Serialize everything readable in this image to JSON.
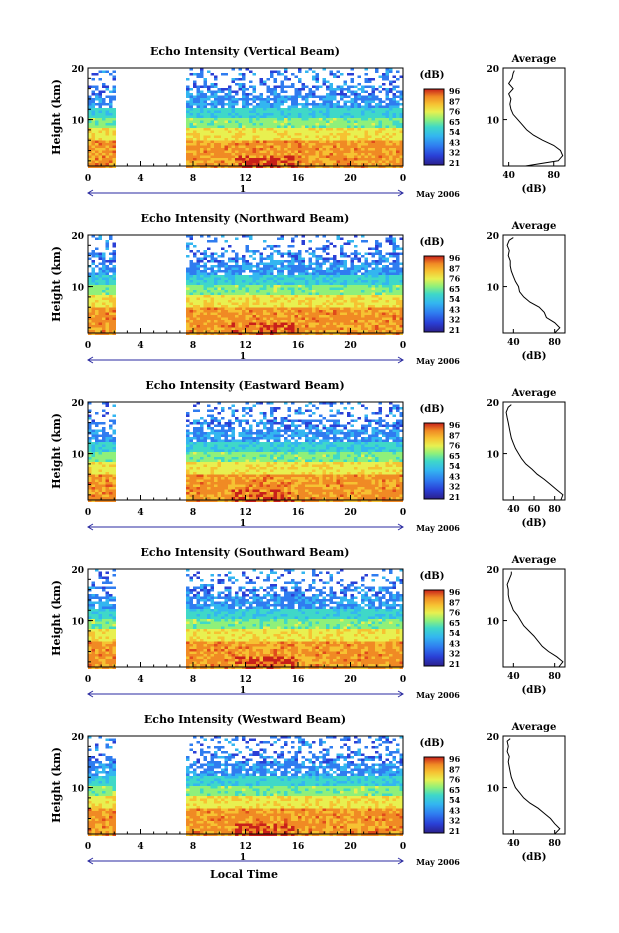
{
  "chart_data": [
    {
      "type": "heatmap",
      "title": "Echo Intensity (Vertical Beam)",
      "ylabel": "Height (km)",
      "cbar_unit": "(dB)",
      "avg_title": "Average",
      "avg_xlabel": "(dB)",
      "avg_xticks": [
        "40",
        "80"
      ],
      "avg_xlim": [
        35,
        90
      ],
      "avg_profile": [
        [
          55,
          1
        ],
        [
          84,
          2
        ],
        [
          88,
          3
        ],
        [
          86,
          4
        ],
        [
          80,
          5
        ],
        [
          70,
          6
        ],
        [
          62,
          7
        ],
        [
          56,
          8
        ],
        [
          52,
          9
        ],
        [
          48,
          10
        ],
        [
          44,
          11
        ],
        [
          42,
          12
        ],
        [
          41,
          13
        ],
        [
          42,
          14
        ],
        [
          40,
          15
        ],
        [
          44,
          16
        ],
        [
          40,
          17
        ],
        [
          43,
          18
        ],
        [
          44,
          19
        ],
        [
          45,
          19.5
        ]
      ]
    },
    {
      "type": "heatmap",
      "title": "Echo Intensity (Northward Beam)",
      "ylabel": "Height (km)",
      "cbar_unit": "(dB)",
      "avg_title": "Average",
      "avg_xlabel": "(dB)",
      "avg_xticks": [
        "40",
        "80"
      ],
      "avg_xlim": [
        30,
        90
      ],
      "avg_profile": [
        [
          80,
          1
        ],
        [
          85,
          2
        ],
        [
          80,
          3
        ],
        [
          72,
          4
        ],
        [
          70,
          5
        ],
        [
          65,
          6
        ],
        [
          56,
          7
        ],
        [
          50,
          8
        ],
        [
          46,
          9
        ],
        [
          45,
          10
        ],
        [
          42,
          11
        ],
        [
          40,
          12
        ],
        [
          38,
          13
        ],
        [
          37,
          14
        ],
        [
          37,
          15
        ],
        [
          35,
          16
        ],
        [
          36,
          17
        ],
        [
          34,
          18
        ],
        [
          36,
          19
        ],
        [
          40,
          19.5
        ]
      ]
    },
    {
      "type": "heatmap",
      "title": "Echo Intensity (Eastward Beam)",
      "ylabel": "Height (km)",
      "cbar_unit": "(dB)",
      "avg_title": "Average",
      "avg_xlabel": "(dB)",
      "avg_xticks": [
        "40",
        "60",
        "80"
      ],
      "avg_xlim": [
        30,
        90
      ],
      "avg_profile": [
        [
          86,
          1
        ],
        [
          88,
          2
        ],
        [
          82,
          3
        ],
        [
          76,
          4
        ],
        [
          70,
          5
        ],
        [
          63,
          6
        ],
        [
          58,
          7
        ],
        [
          52,
          8
        ],
        [
          48,
          9
        ],
        [
          45,
          10
        ],
        [
          42,
          11
        ],
        [
          40,
          12
        ],
        [
          38,
          13
        ],
        [
          37,
          14
        ],
        [
          36,
          15
        ],
        [
          35,
          16
        ],
        [
          34,
          17
        ],
        [
          33,
          18
        ],
        [
          35,
          19
        ],
        [
          38,
          19.5
        ]
      ]
    },
    {
      "type": "heatmap",
      "title": "Echo Intensity (Southward Beam)",
      "ylabel": "Height (km)",
      "cbar_unit": "(dB)",
      "avg_title": "Average",
      "avg_xlabel": "(dB)",
      "avg_xticks": [
        "40",
        "80"
      ],
      "avg_xlim": [
        30,
        90
      ],
      "avg_profile": [
        [
          84,
          1
        ],
        [
          88,
          2
        ],
        [
          82,
          3
        ],
        [
          74,
          4
        ],
        [
          68,
          5
        ],
        [
          64,
          6
        ],
        [
          60,
          7
        ],
        [
          55,
          8
        ],
        [
          50,
          9
        ],
        [
          47,
          10
        ],
        [
          44,
          11
        ],
        [
          40,
          12
        ],
        [
          38,
          13
        ],
        [
          36,
          14
        ],
        [
          35,
          15
        ],
        [
          35,
          16
        ],
        [
          34,
          17
        ],
        [
          36,
          18
        ],
        [
          38,
          19
        ],
        [
          38,
          19.5
        ]
      ]
    },
    {
      "type": "heatmap",
      "title": "Echo Intensity (Westward Beam)",
      "ylabel": "Height (km)",
      "cbar_unit": "(dB)",
      "avg_title": "Average",
      "avg_xlabel": "(dB)",
      "avg_xticks": [
        "40",
        "80"
      ],
      "avg_xlim": [
        30,
        90
      ],
      "avg_profile": [
        [
          80,
          1
        ],
        [
          85,
          2
        ],
        [
          80,
          3
        ],
        [
          76,
          4
        ],
        [
          70,
          5
        ],
        [
          64,
          6
        ],
        [
          56,
          7
        ],
        [
          50,
          8
        ],
        [
          46,
          9
        ],
        [
          42,
          10
        ],
        [
          40,
          11
        ],
        [
          38,
          12
        ],
        [
          37,
          13
        ],
        [
          36,
          14
        ],
        [
          35,
          15
        ],
        [
          36,
          16
        ],
        [
          34,
          17
        ],
        [
          35,
          18
        ],
        [
          34,
          19
        ],
        [
          37,
          19.5
        ]
      ]
    }
  ],
  "shared": {
    "xticks": [
      "0",
      "4",
      "8",
      "12",
      "16",
      "20",
      "0"
    ],
    "xlim": [
      0,
      24
    ],
    "yticks": [
      "20",
      "10"
    ],
    "ylim": [
      1,
      20
    ],
    "data_gap_hours": [
      2.3,
      7.3
    ],
    "cbar_ticks": [
      "96",
      "87",
      "76",
      "65",
      "54",
      "43",
      "32",
      "21"
    ],
    "day_label": "1",
    "month_label": "May 2006",
    "xlabel": "Local Time"
  },
  "cbar_colors": [
    "#2b1f8c",
    "#2a3fd6",
    "#2f7cf0",
    "#33b6f0",
    "#3fd8c8",
    "#8ff07a",
    "#e8f050",
    "#f6c232",
    "#f08a24",
    "#e04a1c",
    "#c8201a"
  ]
}
